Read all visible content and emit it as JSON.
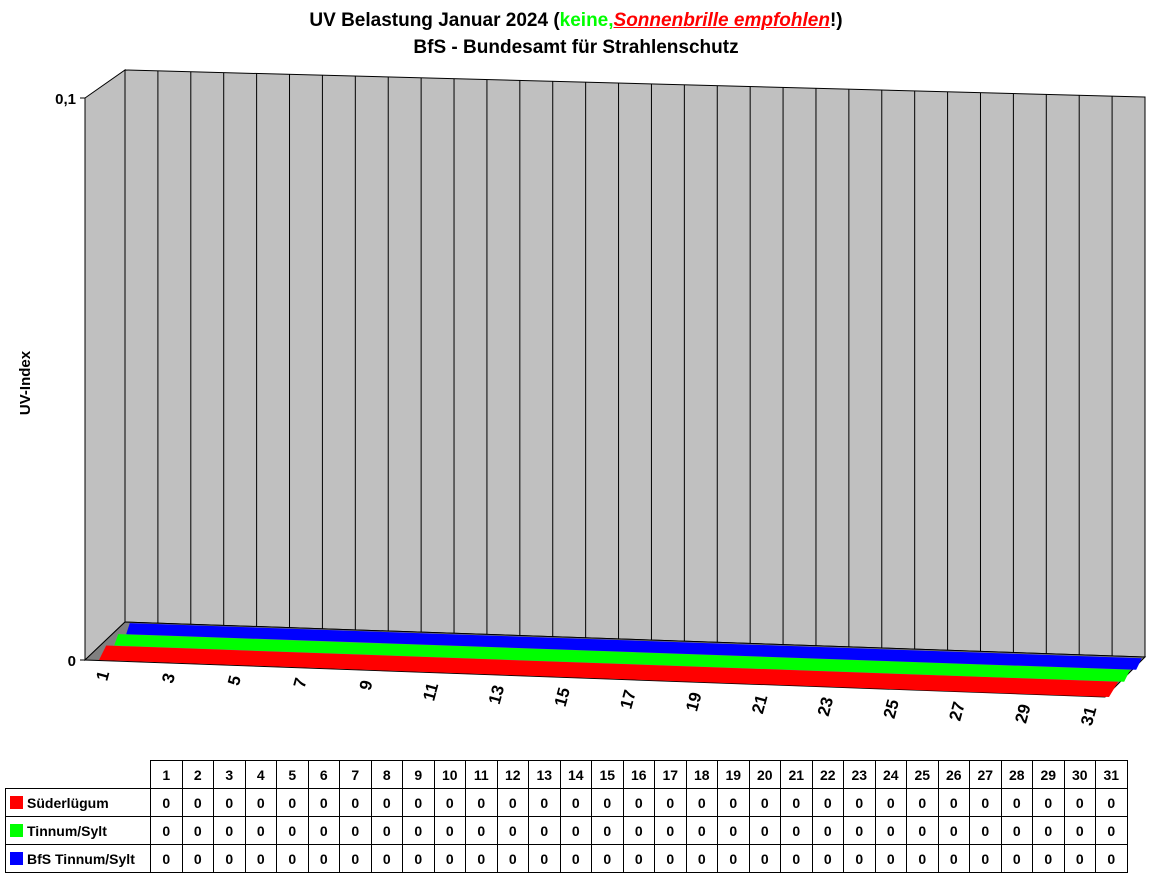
{
  "title": {
    "line1_prefix": "UV Belastung Januar 2024 (",
    "line1_keine": "keine,",
    "line1_sonnenbrille": "Sonnenbrille empfohlen",
    "line1_suffix": "!)",
    "line2": "BfS - Bundesamt für Strahlenschutz"
  },
  "colors": {
    "suederluegum": "#ff0000",
    "tinnum": "#00ff00",
    "bfs": "#0000ff",
    "wall": "#c0c0c0",
    "floor": "#808080"
  },
  "chart_data": {
    "type": "area",
    "title": "UV Belastung Januar 2024 (keine,Sonnenbrille empfohlen!)",
    "subtitle": "BfS - Bundesamt für Strahlenschutz",
    "xlabel": "",
    "ylabel": "UV-Index",
    "ylim": [
      0,
      0.1
    ],
    "yticks": [
      "0",
      "0,1"
    ],
    "x_tick_labels": [
      "1",
      "3",
      "5",
      "7",
      "9",
      "11",
      "13",
      "15",
      "17",
      "19",
      "21",
      "23",
      "25",
      "27",
      "29",
      "31"
    ],
    "categories": [
      "1",
      "2",
      "3",
      "4",
      "5",
      "6",
      "7",
      "8",
      "9",
      "10",
      "11",
      "12",
      "13",
      "14",
      "15",
      "16",
      "17",
      "18",
      "19",
      "20",
      "21",
      "22",
      "23",
      "24",
      "25",
      "26",
      "27",
      "28",
      "29",
      "30",
      "31"
    ],
    "series": [
      {
        "name": "Süderlügum",
        "values": [
          0,
          0,
          0,
          0,
          0,
          0,
          0,
          0,
          0,
          0,
          0,
          0,
          0,
          0,
          0,
          0,
          0,
          0,
          0,
          0,
          0,
          0,
          0,
          0,
          0,
          0,
          0,
          0,
          0,
          0,
          0
        ]
      },
      {
        "name": "Tinnum/Sylt",
        "values": [
          0,
          0,
          0,
          0,
          0,
          0,
          0,
          0,
          0,
          0,
          0,
          0,
          0,
          0,
          0,
          0,
          0,
          0,
          0,
          0,
          0,
          0,
          0,
          0,
          0,
          0,
          0,
          0,
          0,
          0,
          0
        ]
      },
      {
        "name": "BfS Tinnum/Sylt",
        "values": [
          0,
          0,
          0,
          0,
          0,
          0,
          0,
          0,
          0,
          0,
          0,
          0,
          0,
          0,
          0,
          0,
          0,
          0,
          0,
          0,
          0,
          0,
          0,
          0,
          0,
          0,
          0,
          0,
          0,
          0,
          0
        ]
      }
    ],
    "grid": true,
    "legend": "data-table-below"
  }
}
